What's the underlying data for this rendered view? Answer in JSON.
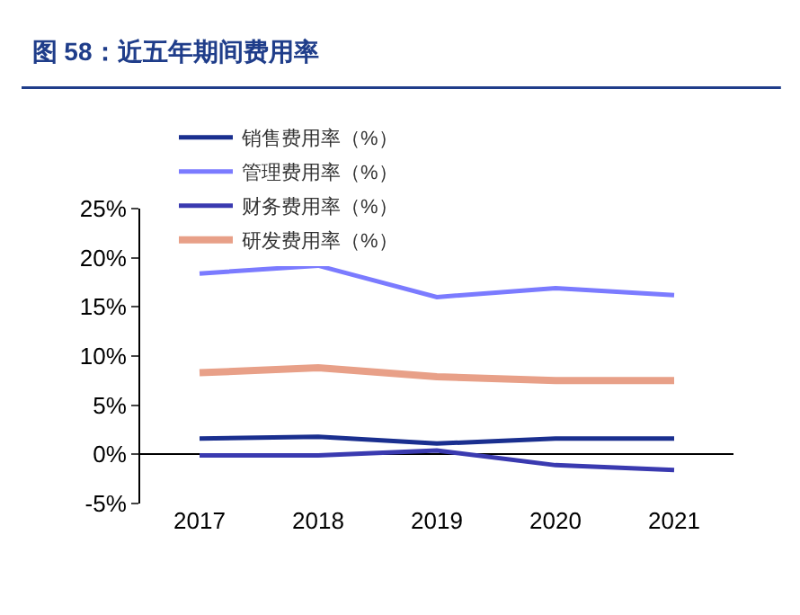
{
  "chart_data": {
    "type": "line",
    "title": "图 58：近五年期间费用率",
    "categories": [
      "2017",
      "2018",
      "2019",
      "2020",
      "2021"
    ],
    "series": [
      {
        "name": "销售费用率（%）",
        "color": "#1a2f8f",
        "values": [
          1.6,
          1.8,
          1.1,
          1.6,
          1.6
        ]
      },
      {
        "name": "管理费用率（%）",
        "color": "#7b7bff",
        "values": [
          18.4,
          19.2,
          16.0,
          16.9,
          16.2
        ]
      },
      {
        "name": "财务费用率（%）",
        "color": "#3a3ab0",
        "values": [
          -0.1,
          -0.1,
          0.4,
          -1.1,
          -1.6
        ]
      },
      {
        "name": "研发费用率（%）",
        "color": "#e8a088",
        "values": [
          8.3,
          8.8,
          7.9,
          7.5,
          7.5
        ]
      }
    ],
    "ylim": [
      -5,
      25
    ],
    "yticks": [
      {
        "value": -5,
        "label": "-5%"
      },
      {
        "value": 0,
        "label": "0%"
      },
      {
        "value": 5,
        "label": "5%"
      },
      {
        "value": 10,
        "label": "10%"
      },
      {
        "value": 15,
        "label": "15%"
      },
      {
        "value": 20,
        "label": "20%"
      },
      {
        "value": 25,
        "label": "25%"
      }
    ],
    "legend": "top",
    "marker": "none",
    "line_style": "solid"
  }
}
